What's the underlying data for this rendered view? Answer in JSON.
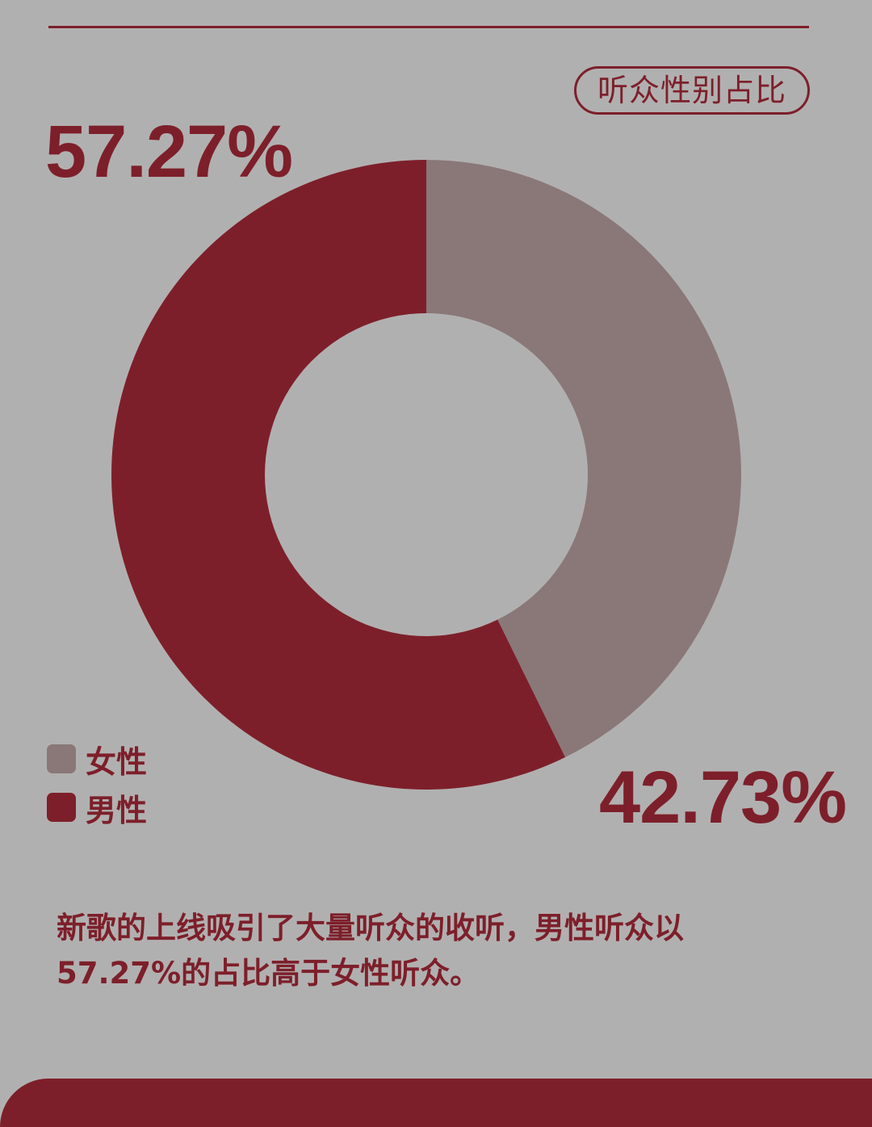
{
  "title": "听众性别占比",
  "chart_data": {
    "type": "pie",
    "donut": true,
    "series": [
      {
        "name": "女性",
        "value": 42.73,
        "label": "42.73%",
        "color": "#8a7878"
      },
      {
        "name": "男性",
        "value": 57.27,
        "label": "57.27%",
        "color": "#7d1f2a"
      }
    ],
    "legend": "bottom-left"
  },
  "description": "新歌的上线吸引了大量听众的收听，男性听众以57.27%的占比高于女性听众。",
  "colors": {
    "background": "#b1b0b0",
    "accent": "#7d1f2a",
    "female": "#8a7878"
  }
}
